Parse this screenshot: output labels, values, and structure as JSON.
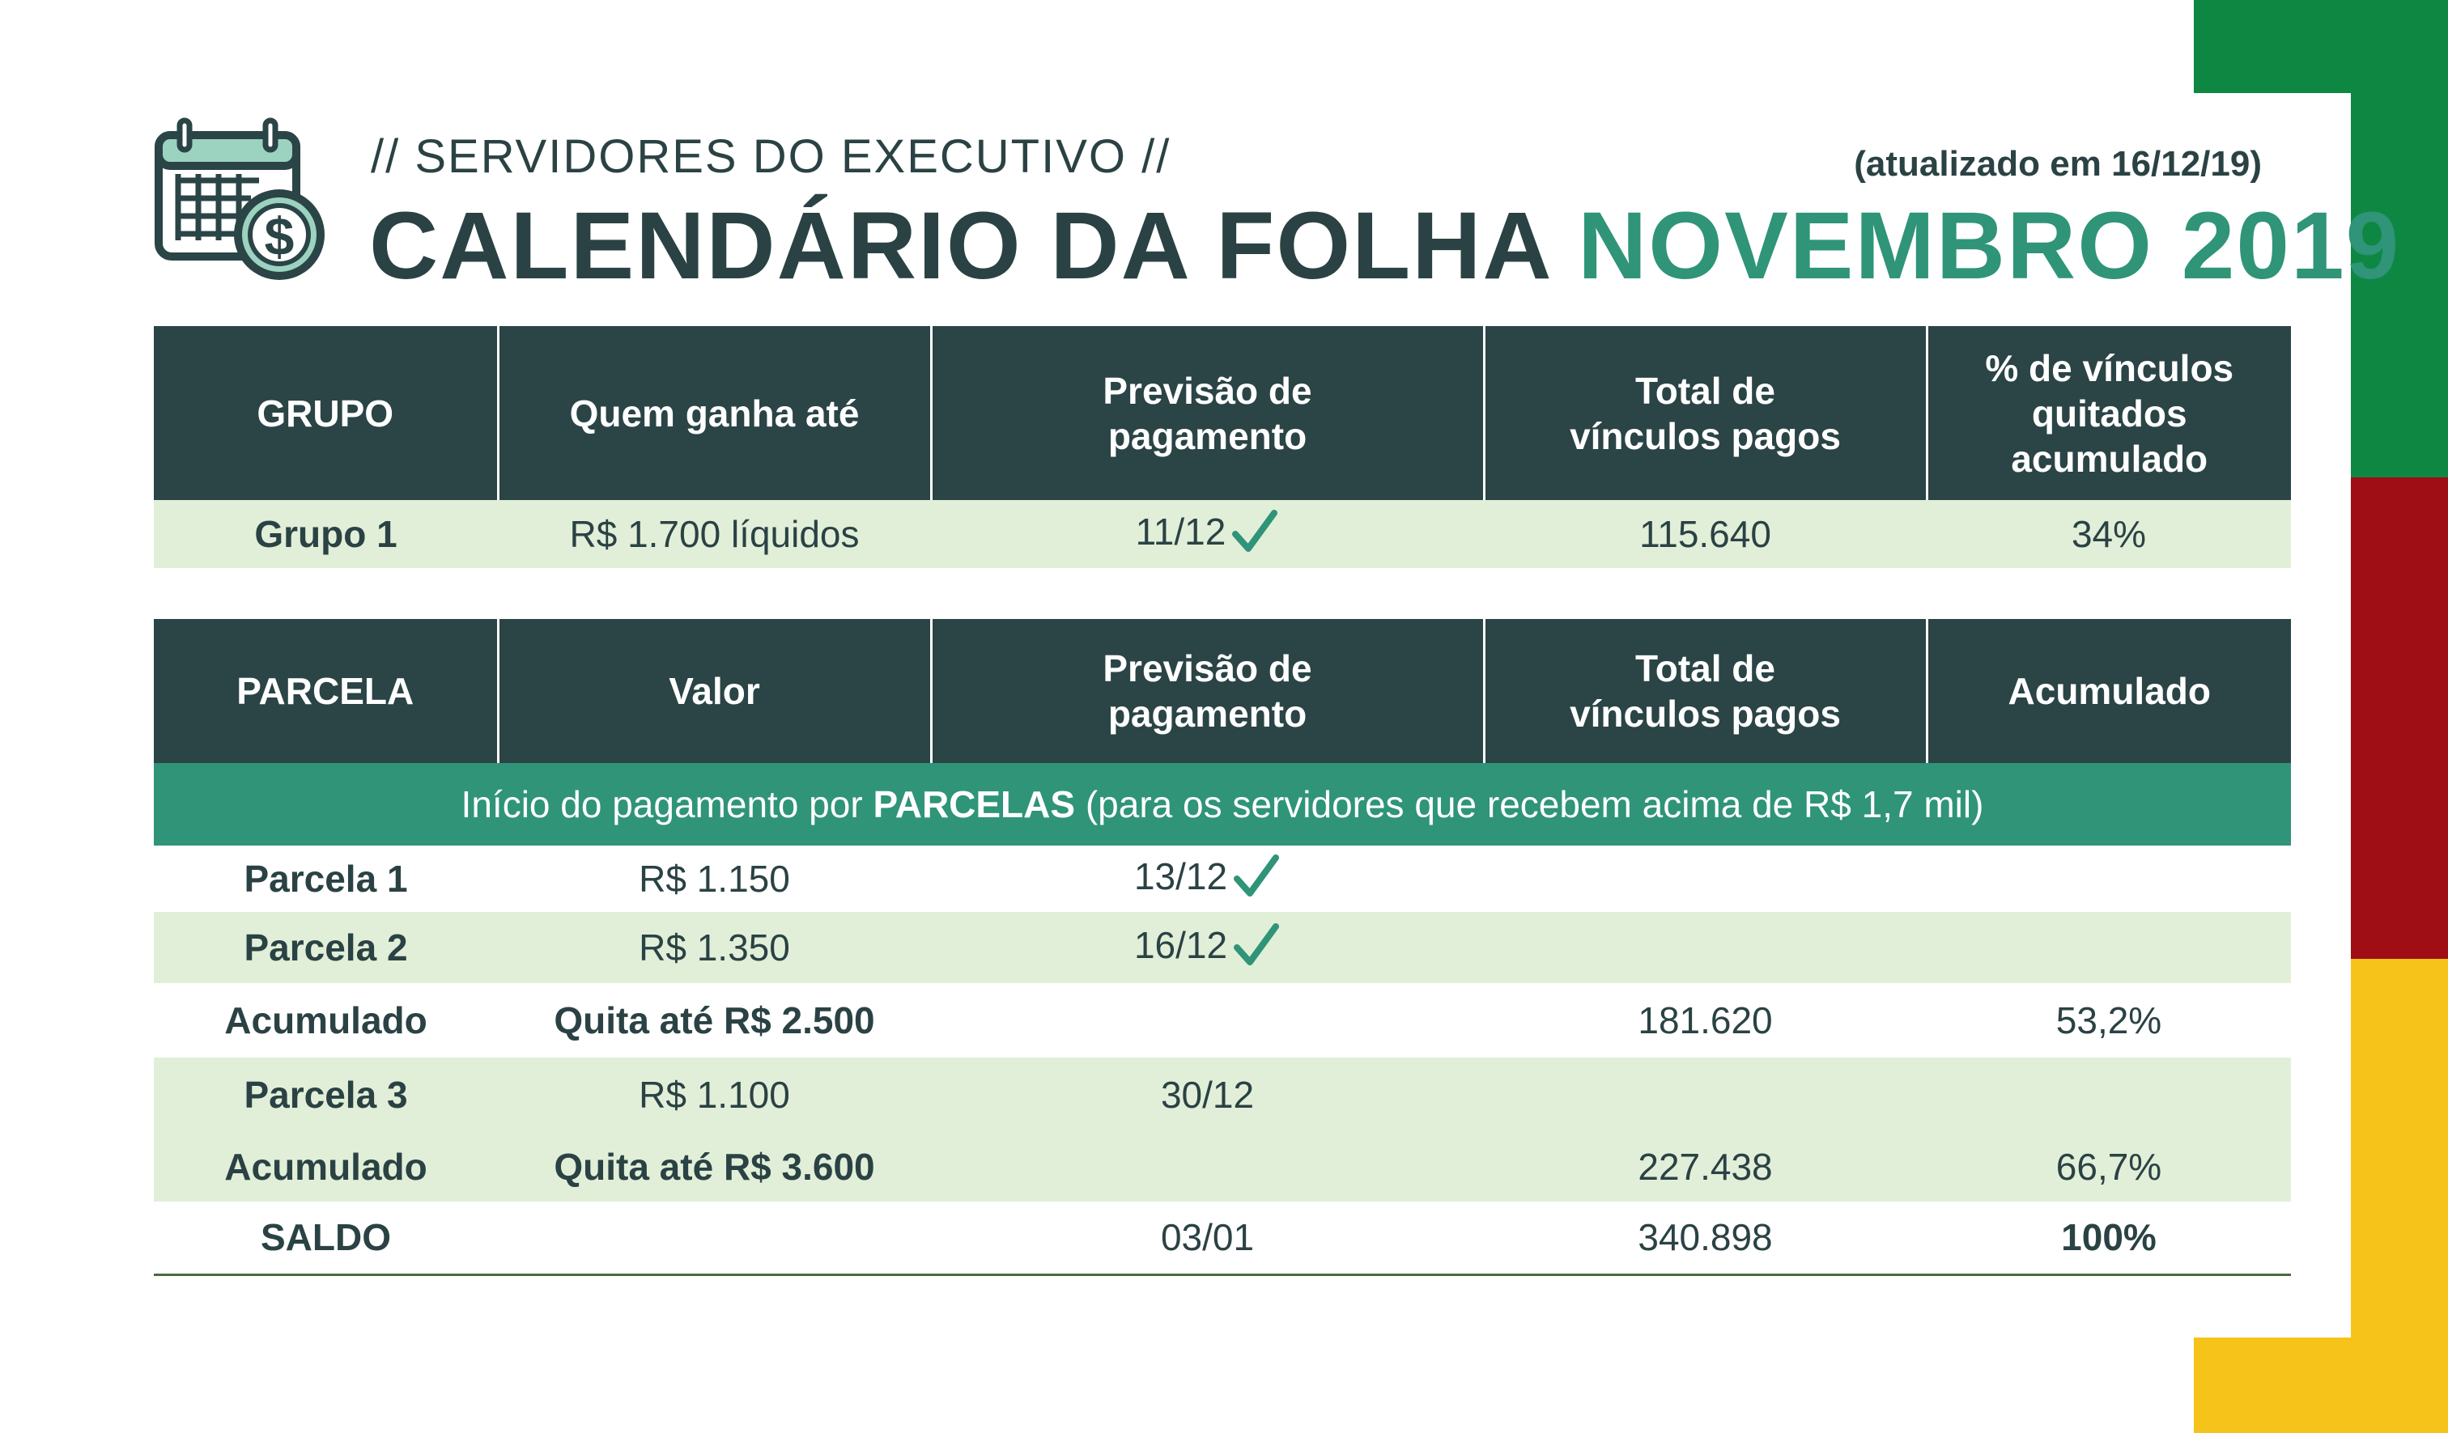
{
  "header": {
    "subtitle": "// SERVIDORES DO EXECUTIVO //",
    "updated": "(atualizado em 16/12/19)",
    "title_main": "CALENDÁRIO DA FOLHA ",
    "title_accent": "NOVEMBRO 2019"
  },
  "colors": {
    "dark": "#2b4446",
    "accent": "#2f9478",
    "light_row": "#e1efd9",
    "stripe_green": "#0e8742",
    "stripe_red": "#9e0e14",
    "stripe_yellow": "#f6c31a"
  },
  "icons": [
    "calendar-money-icon",
    "check-icon"
  ],
  "table1": {
    "headers": [
      "GRUPO",
      "Quem ganha até",
      "Previsão de pagamento",
      "Total de vínculos pagos",
      "% de vínculos quitados acumulado"
    ],
    "rows": [
      [
        "Grupo 1",
        "R$ 1.700 líquidos",
        "11/12",
        "115.640",
        "34%"
      ]
    ]
  },
  "table2": {
    "headers": [
      "PARCELA",
      "Valor",
      "Previsão de pagamento",
      "Total de vínculos pagos",
      "Acumulado"
    ],
    "banner": {
      "pre": "Início do pagamento por ",
      "bold": "PARCELAS",
      "post": " (para os servidores que recebem acima de R$ 1,7 mil)"
    },
    "rows": [
      [
        "Parcela 1",
        "R$ 1.150",
        "13/12",
        "",
        ""
      ],
      [
        "Parcela 2",
        "R$ 1.350",
        "16/12",
        "",
        ""
      ],
      [
        "Acumulado",
        "Quita até R$ 2.500",
        "",
        "181.620",
        "53,2%"
      ],
      [
        "Parcela 3",
        "R$ 1.100",
        "30/12",
        "",
        ""
      ],
      [
        "Acumulado",
        "Quita até R$ 3.600",
        "",
        "227.438",
        "66,7%"
      ],
      [
        "SALDO",
        "",
        "03/01",
        "340.898",
        "100%"
      ]
    ]
  }
}
